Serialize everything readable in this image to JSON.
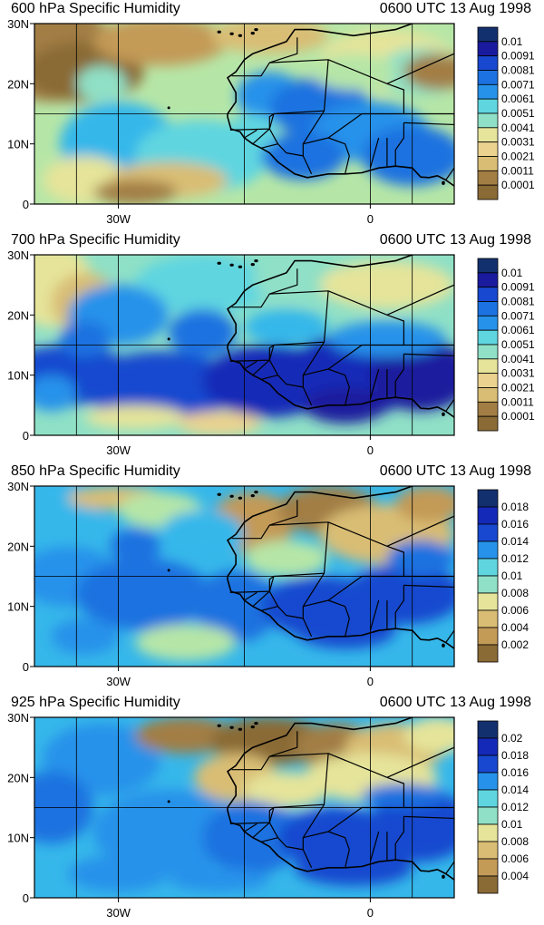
{
  "colors": {
    "scale": [
      "#8a6a35",
      "#a27e44",
      "#c39a56",
      "#d9bd74",
      "#ebd38f",
      "#e5e49a",
      "#b6e6a7",
      "#8fe0c6",
      "#5fd5e0",
      "#36b7ea",
      "#2792ea",
      "#1b72e0",
      "#1848cf",
      "#1429b8",
      "#1a1a9e",
      "#13306e"
    ],
    "land_border": "#000000",
    "grid": "#000000"
  },
  "panels": [
    {
      "title_left": "600 hPa Specific Humidity",
      "title_right": "0600 UTC 13 Aug 1998",
      "y_labels": [
        "30N",
        "20N",
        "10N",
        "0"
      ],
      "x_labels": [
        "30W",
        "0"
      ],
      "colorbar_labels": [
        "0.01",
        "0.0091",
        "0.0081",
        "0.0071",
        "0.0061",
        "0.0051",
        "0.0041",
        "0.0031",
        "0.0021",
        "0.0011",
        "0.0001"
      ]
    },
    {
      "title_left": "700 hPa Specific Humidity",
      "title_right": "0600 UTC 13 Aug 1998",
      "y_labels": [
        "30N",
        "20N",
        "10N",
        "0"
      ],
      "x_labels": [
        "30W",
        "0"
      ],
      "colorbar_labels": [
        "0.01",
        "0.0091",
        "0.0081",
        "0.0071",
        "0.0061",
        "0.0051",
        "0.0041",
        "0.0031",
        "0.0021",
        "0.0011",
        "0.0001"
      ]
    },
    {
      "title_left": "850 hPa Specific Humidity",
      "title_right": "0600 UTC 13 Aug 1998",
      "y_labels": [
        "30N",
        "20N",
        "10N",
        "0"
      ],
      "x_labels": [
        "30W",
        "0"
      ],
      "colorbar_labels": [
        "0.018",
        "0.016",
        "0.014",
        "0.012",
        "0.01",
        "0.008",
        "0.006",
        "0.004",
        "0.002"
      ]
    },
    {
      "title_left": "925 hPa Specific Humidity",
      "title_right": "0600 UTC 13 Aug 1998",
      "y_labels": [
        "30N",
        "20N",
        "10N",
        "0"
      ],
      "x_labels": [
        "30W",
        "0"
      ],
      "colorbar_labels": [
        "0.02",
        "0.018",
        "0.016",
        "0.014",
        "0.012",
        "0.01",
        "0.008",
        "0.006",
        "0.004"
      ]
    }
  ]
}
